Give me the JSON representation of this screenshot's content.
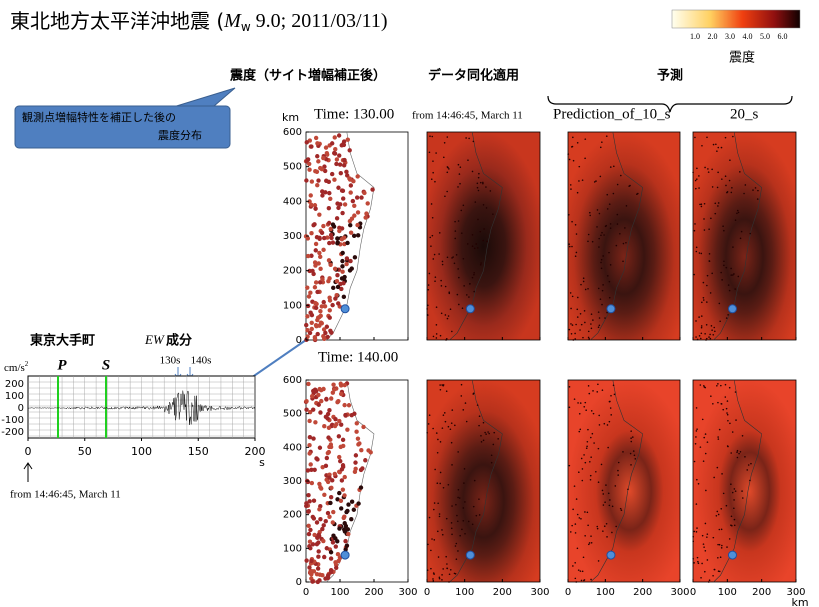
{
  "title": {
    "prefix": "東北地方太平洋沖地震 (",
    "m": "M",
    "sub": "w",
    "suffix": " 9.0;  2011/03/11)"
  },
  "colorbar": {
    "ticks": [
      "1.0",
      "2.0",
      "3.0",
      "4.0",
      "5.0",
      "6.0"
    ],
    "label": "震度"
  },
  "headers": {
    "observed": "震度（サイト増幅補正後）",
    "assimilation": "データ同化適用",
    "prediction": "予測"
  },
  "callout": [
    "観測点増幅特性を補正した後の",
    "震度分布"
  ],
  "rows": [
    {
      "time": "Time: 130.00",
      "from": "from 14:46:45, March 11",
      "pred1": "Prediction_of_10_s",
      "pred2": "20_s"
    },
    {
      "time": "Time: 140.00"
    }
  ],
  "map_axis": {
    "y_unit": "km",
    "yticks": [
      "0",
      "100",
      "200",
      "300",
      "400",
      "500",
      "600"
    ],
    "xticks": [
      "0",
      "100",
      "200",
      "300"
    ],
    "x_unit": "km"
  },
  "seismogram": {
    "station": "東京大手町",
    "component_italic": "EW",
    "component": "成分",
    "y_unit": "cm/s",
    "y_unit_sup": "2",
    "p": "P",
    "s": "S",
    "markers": [
      "130s",
      "140s"
    ],
    "yticks": [
      "200",
      "100",
      "0",
      "-100",
      "-200"
    ],
    "xticks": [
      "0",
      "50",
      "100",
      "150",
      "200"
    ],
    "x_unit": "s",
    "origin": "from 14:46:45, March 11"
  }
}
